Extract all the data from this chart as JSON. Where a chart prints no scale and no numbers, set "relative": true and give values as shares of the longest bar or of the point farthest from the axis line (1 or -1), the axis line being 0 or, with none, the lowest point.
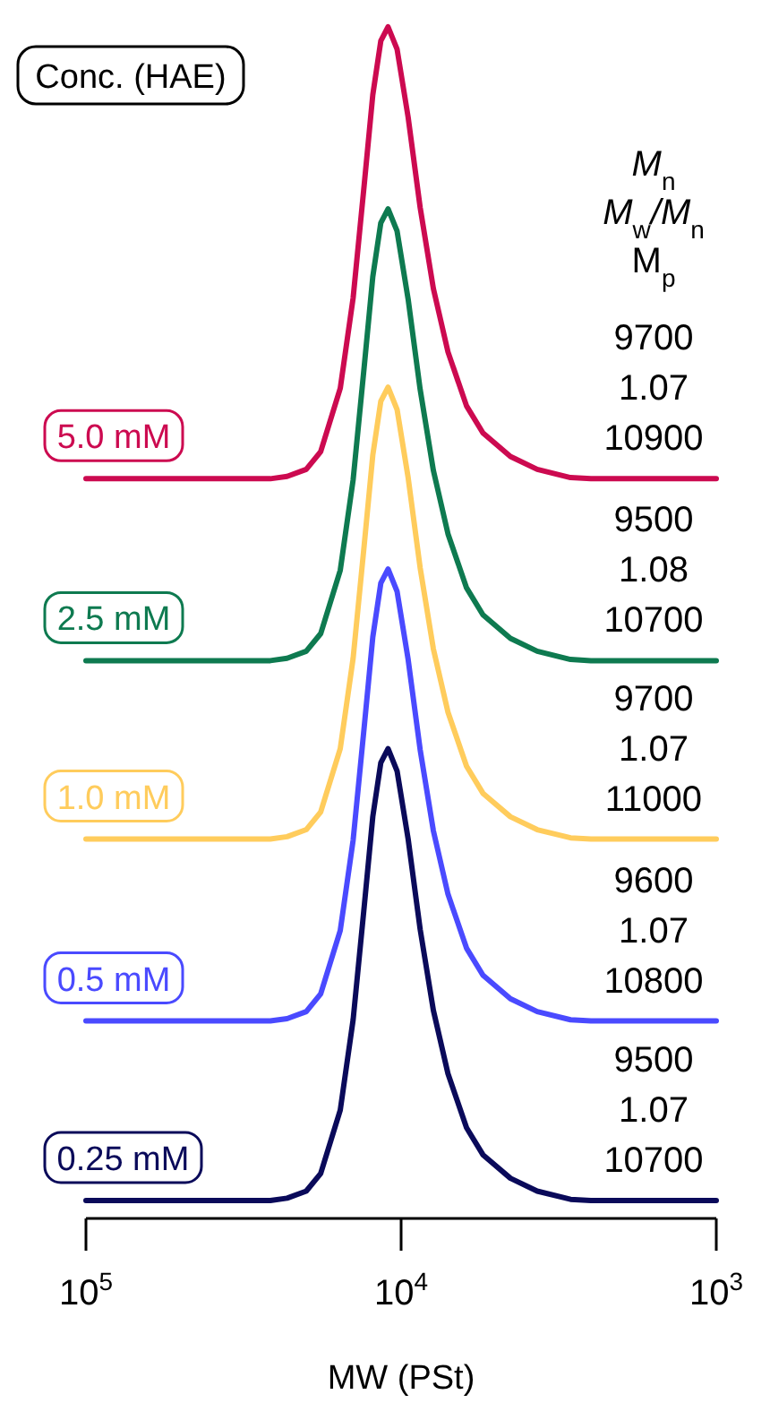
{
  "chart_data": {
    "type": "line",
    "relative": true,
    "log": "x",
    "xlim": [
      100000,
      1000
    ],
    "xticks": [
      {
        "value": 100000,
        "label": "10$^{5}$"
      },
      {
        "value": 10000,
        "label": "10$^{4}$"
      },
      {
        "value": 1000,
        "label": "10$^{3}$"
      }
    ],
    "tick_labels": "x",
    "xlabel": "MW (PSt)",
    "legend_title": "Conc. (HAE)",
    "line_style": "solid",
    "x": [
      100000,
      26000,
      23000,
      20000,
      18000,
      15600,
      14200,
      13100,
      12300,
      11600,
      11000,
      10300,
      9500,
      8700,
      7900,
      7100,
      6200,
      5500,
      4500,
      3700,
      2900,
      2500,
      1000
    ],
    "series": [
      {
        "name": "5.0 mM",
        "color": "#cc0a50",
        "values": [
          0.615,
          0.615,
          0.617,
          0.623,
          0.638,
          0.692,
          0.769,
          0.865,
          0.942,
          0.988,
          1.0,
          0.981,
          0.923,
          0.846,
          0.777,
          0.723,
          0.677,
          0.654,
          0.634,
          0.623,
          0.616,
          0.615,
          0.615
        ]
      },
      {
        "name": "2.5 mM",
        "color": "#0e7a50",
        "values": [
          0.46,
          0.46,
          0.462,
          0.468,
          0.483,
          0.537,
          0.614,
          0.71,
          0.787,
          0.833,
          0.845,
          0.826,
          0.768,
          0.691,
          0.622,
          0.568,
          0.522,
          0.499,
          0.479,
          0.468,
          0.461,
          0.46,
          0.46
        ]
      },
      {
        "name": "1.0 mM",
        "color": "#ffcc5c",
        "values": [
          0.308,
          0.308,
          0.31,
          0.316,
          0.331,
          0.385,
          0.462,
          0.558,
          0.635,
          0.681,
          0.693,
          0.674,
          0.616,
          0.539,
          0.47,
          0.416,
          0.37,
          0.347,
          0.327,
          0.316,
          0.309,
          0.308,
          0.308
        ]
      },
      {
        "name": "0.5 mM",
        "color": "#4a4aff",
        "values": [
          0.153,
          0.153,
          0.155,
          0.161,
          0.176,
          0.23,
          0.307,
          0.403,
          0.48,
          0.526,
          0.538,
          0.519,
          0.461,
          0.384,
          0.315,
          0.261,
          0.215,
          0.192,
          0.172,
          0.161,
          0.154,
          0.153,
          0.153
        ]
      },
      {
        "name": "0.25 mM",
        "color": "#0a0a5a",
        "values": [
          0,
          0,
          0.002,
          0.008,
          0.023,
          0.077,
          0.154,
          0.25,
          0.327,
          0.373,
          0.385,
          0.366,
          0.308,
          0.231,
          0.162,
          0.108,
          0.062,
          0.039,
          0.019,
          0.008,
          0.001,
          0,
          0
        ]
      }
    ],
    "annotations": [
      "M$_{n}$",
      "M$_{w}$/M$_{n}$",
      "M$_{p}$",
      "9700\n1.07\n10900",
      "9500\n1.08\n10700",
      "9700\n1.07\n11000",
      "9600\n1.07\n10800",
      "9500\n1.07\n10700"
    ]
  }
}
